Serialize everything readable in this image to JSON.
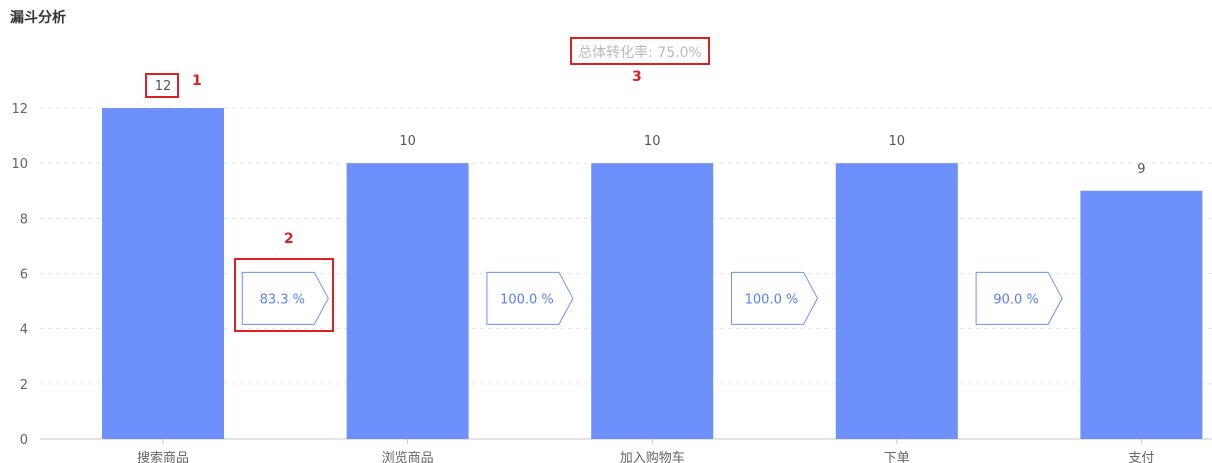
{
  "header": {
    "title": "漏斗分析"
  },
  "chart_data": {
    "type": "bar",
    "categories": [
      "搜索商品",
      "浏览商品",
      "加入购物车",
      "下单",
      "支付"
    ],
    "values": [
      12,
      10,
      10,
      10,
      9
    ],
    "conversion_rates": [
      "83.3 %",
      "100.0 %",
      "100.0 %",
      "90.0 %"
    ],
    "overall_rate_label": "总体转化率: 75.0%",
    "ylim": [
      0,
      12
    ],
    "yticks": [
      0,
      2,
      4,
      6,
      8,
      10,
      12
    ],
    "grid": true,
    "colors": {
      "bar": "#6d90fa",
      "rate_border": "#6d90fa",
      "rate_text": "#5b7ff5",
      "grid": "#e6e6e6",
      "annotation": "#e02020"
    },
    "annotations": [
      "1",
      "2",
      "3"
    ]
  }
}
